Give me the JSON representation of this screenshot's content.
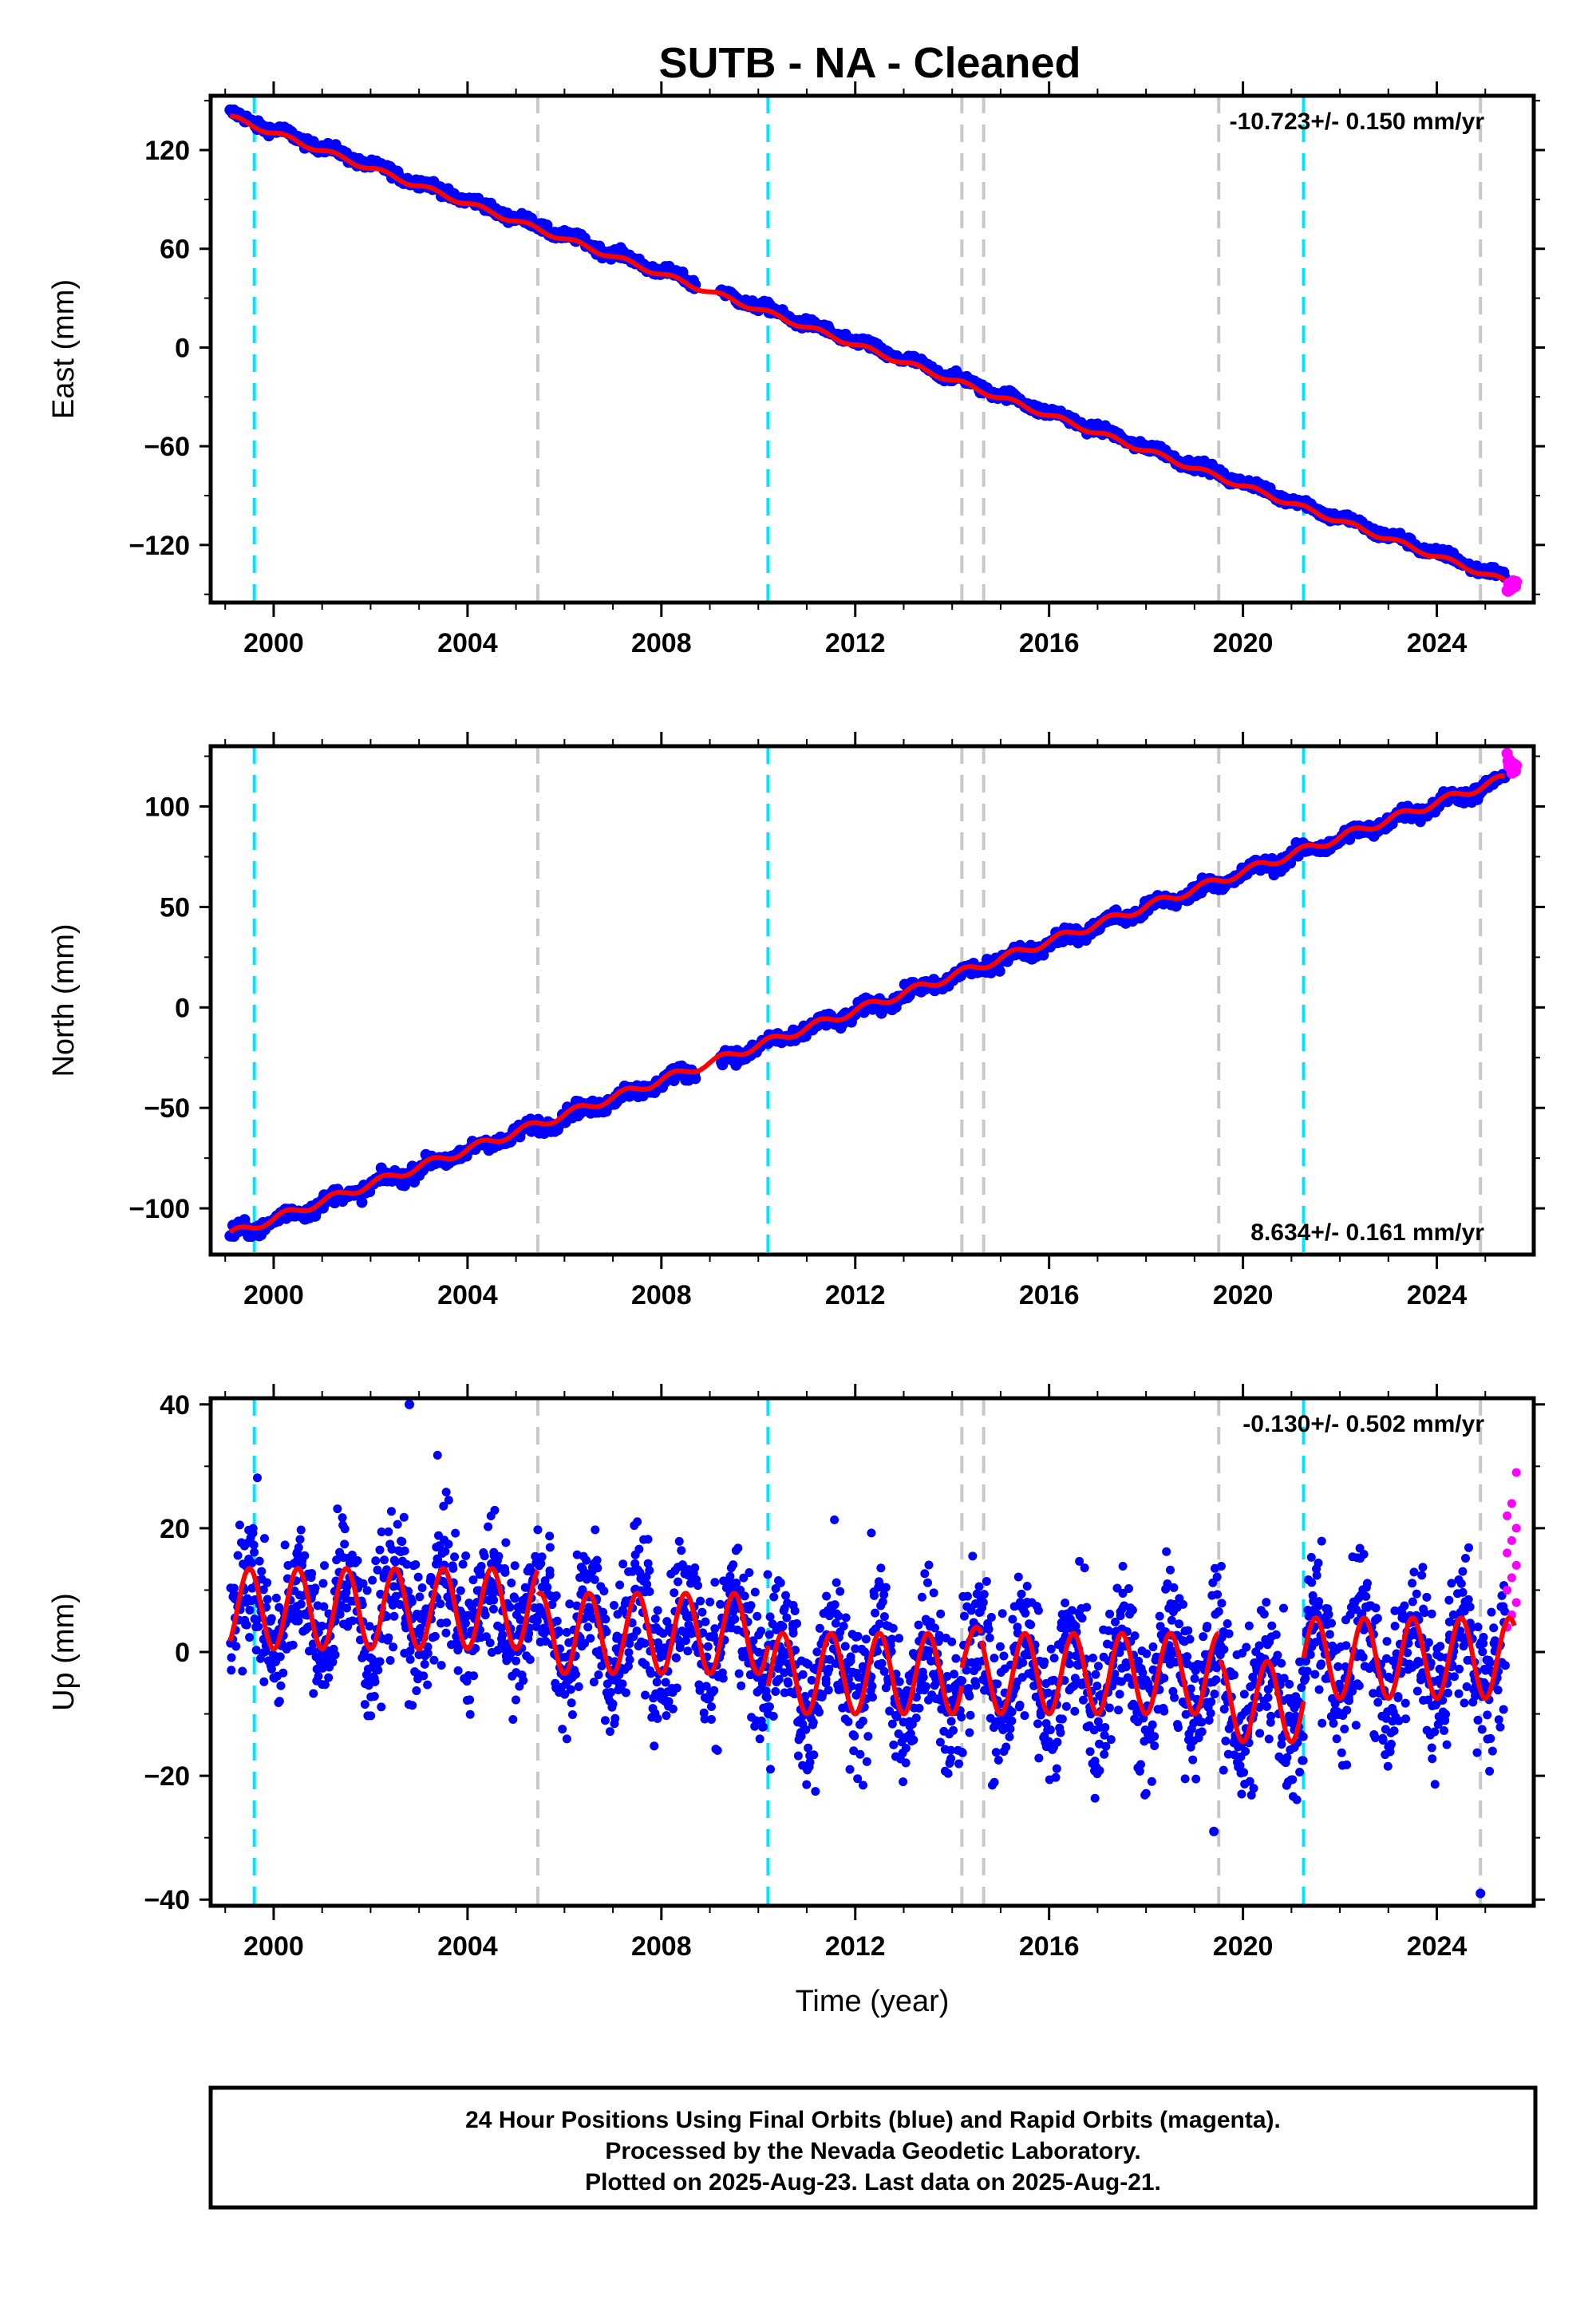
{
  "title": "SUTB  - NA - Cleaned",
  "colors": {
    "final_orbits": "#0000ff",
    "rapid_orbits": "#ff00ff",
    "model": "#ff0000",
    "antenna_change": "#00e5ff",
    "other_event": "#c8c8c8"
  },
  "chart_data": [
    {
      "type": "scatter",
      "panel": "east",
      "ylabel": "East (mm)",
      "xlabel": "",
      "xlim": [
        1998.7,
        2026.0
      ],
      "ylim": [
        -155,
        153
      ],
      "yticks": [
        -120,
        -60,
        0,
        60,
        120
      ],
      "ytick_labels": [
        "−120",
        "−60",
        "0",
        "60",
        "120"
      ],
      "xticks": [
        2000,
        2004,
        2008,
        2012,
        2016,
        2020,
        2024
      ],
      "rate_text": "-10.723+/- 0.150 mm/yr",
      "rate_position": "top-right",
      "series": [
        {
          "name": "Final Orbits",
          "role": "final",
          "x_start": 1999.1,
          "x_end": 2025.4,
          "intercept_y": 142,
          "rate": -10.723,
          "annual_amp": 1.5,
          "noise": 1.5,
          "gap": [
            2008.7,
            2009.2
          ]
        },
        {
          "name": "Rapid Orbits",
          "role": "rapid",
          "x_start": 2025.45,
          "x_end": 2025.64,
          "y_center": -145
        }
      ],
      "model": {
        "x_start": 1999.1,
        "x_end": 2025.4,
        "y_start": 140,
        "rate": -10.723,
        "annual_amp": 1.5
      },
      "gap": [
        2008.7,
        2009.2
      ]
    },
    {
      "type": "scatter",
      "panel": "north",
      "ylabel": "North (mm)",
      "xlabel": "",
      "xlim": [
        1998.7,
        2026.0
      ],
      "ylim": [
        -123,
        130
      ],
      "yticks": [
        -100,
        -50,
        0,
        50,
        100
      ],
      "ytick_labels": [
        "−100",
        "−50",
        "0",
        "50",
        "100"
      ],
      "xticks": [
        2000,
        2004,
        2008,
        2012,
        2016,
        2020,
        2024
      ],
      "rate_text": "8.634+/- 0.161 mm/yr",
      "rate_position": "bottom-right",
      "series": [
        {
          "name": "Final Orbits",
          "role": "final",
          "x_start": 1999.1,
          "x_end": 2025.4,
          "intercept_y": -114,
          "rate": 8.634,
          "annual_amp": 2.0,
          "noise": 1.8,
          "gap": [
            2008.7,
            2009.2
          ]
        },
        {
          "name": "Rapid Orbits",
          "role": "rapid",
          "x_start": 2025.45,
          "x_end": 2025.64,
          "y_center": 121
        }
      ],
      "model": {
        "x_start": 1999.1,
        "x_end": 2025.4,
        "y_start": -113,
        "rate": 8.634,
        "annual_amp": 2.0
      }
    },
    {
      "type": "scatter",
      "panel": "up",
      "ylabel": "Up (mm)",
      "xlabel": "Time (year)",
      "xlim": [
        1998.7,
        2026.0
      ],
      "ylim": [
        -41,
        41
      ],
      "yticks": [
        -40,
        -20,
        0,
        20,
        40
      ],
      "ytick_labels": [
        "−40",
        "−20",
        "0",
        "20",
        "40"
      ],
      "xticks": [
        2000,
        2004,
        2008,
        2012,
        2016,
        2020,
        2024
      ],
      "rate_text": "-0.130+/- 0.502 mm/yr",
      "rate_position": "top-right",
      "series": [
        {
          "name": "Final Orbits",
          "role": "final",
          "x_start": 1999.1,
          "x_end": 2025.4,
          "noise": 4.5
        },
        {
          "name": "Rapid Orbits",
          "role": "rapid",
          "x_start": 2025.45,
          "x_end": 2025.64,
          "values": [
            4,
            6,
            8,
            10,
            12,
            14,
            16,
            18,
            20,
            22,
            24,
            29
          ]
        }
      ],
      "outliers": [
        {
          "x": 2002.8,
          "y": 40
        },
        {
          "x": 2024.9,
          "y": -39
        },
        {
          "x": 2019.4,
          "y": -29
        }
      ],
      "model_segments": [
        {
          "x0": 1999.1,
          "x1": 2005.45,
          "offset": 7,
          "amp": 6.5
        },
        {
          "x0": 2005.45,
          "x1": 2010.2,
          "offset": 3,
          "amp": 6.5
        },
        {
          "x0": 2010.2,
          "x1": 2014.2,
          "offset": -3.5,
          "amp": 6.5
        },
        {
          "x0": 2014.2,
          "x1": 2014.6,
          "offset": -1,
          "amp": 5
        },
        {
          "x0": 2014.6,
          "x1": 2019.5,
          "offset": -3.5,
          "amp": 6.5
        },
        {
          "x0": 2019.5,
          "x1": 2021.25,
          "offset": -8,
          "amp": 6.5
        },
        {
          "x0": 2021.25,
          "x1": 2025.6,
          "offset": -1,
          "amp": 6.5
        }
      ]
    }
  ],
  "event_lines": [
    {
      "x": 1999.6,
      "kind": "antenna_change"
    },
    {
      "x": 2005.45,
      "kind": "other_event"
    },
    {
      "x": 2010.2,
      "kind": "antenna_change"
    },
    {
      "x": 2014.2,
      "kind": "other_event"
    },
    {
      "x": 2014.65,
      "kind": "other_event"
    },
    {
      "x": 2019.5,
      "kind": "other_event"
    },
    {
      "x": 2021.25,
      "kind": "antenna_change"
    },
    {
      "x": 2024.9,
      "kind": "other_event"
    }
  ],
  "footer": {
    "line1": "24 Hour Positions Using Final Orbits (blue) and Rapid Orbits (magenta).",
    "line2": "Processed by the Nevada Geodetic Laboratory.",
    "line3": "Plotted on 2025-Aug-23. Last data on 2025-Aug-21."
  }
}
